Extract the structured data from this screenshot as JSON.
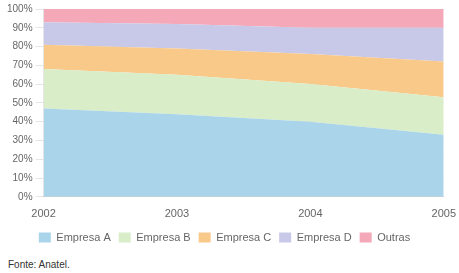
{
  "chart_data": {
    "type": "area",
    "stacked": true,
    "x": [
      2002,
      2003,
      2004,
      2005
    ],
    "series": [
      {
        "name": "Empresa A",
        "color": "#aad4ea",
        "values": [
          47,
          44,
          40,
          33
        ]
      },
      {
        "name": "Empresa B",
        "color": "#d8edc8",
        "values": [
          21,
          21,
          20,
          20
        ]
      },
      {
        "name": "Empresa C",
        "color": "#f9c98a",
        "values": [
          13,
          14,
          16,
          19
        ]
      },
      {
        "name": "Empresa D",
        "color": "#c8c8e8",
        "values": [
          12,
          13,
          14,
          18
        ]
      },
      {
        "name": "Outras",
        "color": "#f4a8b8",
        "values": [
          7,
          8,
          10,
          10
        ]
      }
    ],
    "xlim": [
      2002,
      2005
    ],
    "xticks": [
      2002,
      2003,
      2004,
      2005
    ],
    "ylim": [
      0,
      100
    ],
    "yticks": [
      {
        "value": 0,
        "label": "0%"
      },
      {
        "value": 10,
        "label": "10%"
      },
      {
        "value": 20,
        "label": "20%"
      },
      {
        "value": 30,
        "label": "30%"
      },
      {
        "value": 40,
        "label": "40%"
      },
      {
        "value": 50,
        "label": "50%"
      },
      {
        "value": 60,
        "label": "60%"
      },
      {
        "value": 70,
        "label": "70%"
      },
      {
        "value": 80,
        "label": "80%"
      },
      {
        "value": 90,
        "label": "90%"
      },
      {
        "value": 100,
        "label": "100%"
      }
    ],
    "grid": "y",
    "legend": "bottom",
    "annotation": "Fonte: Anatel."
  }
}
